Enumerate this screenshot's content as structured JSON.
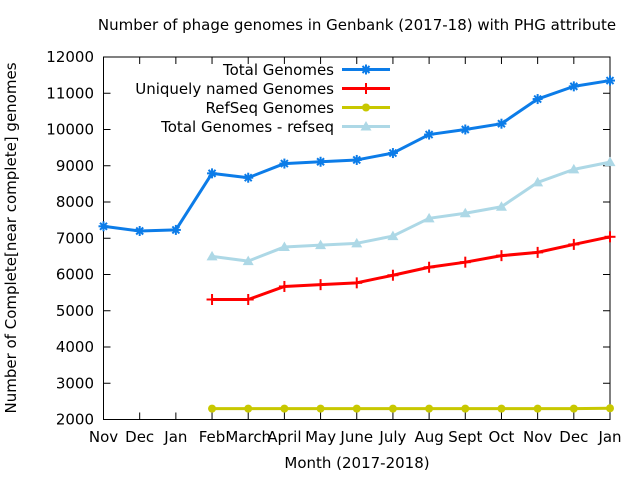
{
  "window": {
    "background": "#ffffff",
    "frame_color": "#000000"
  },
  "chart_data": {
    "type": "line",
    "title": "Number of phage genomes in Genbank (2017-18) with PHG attribute",
    "xlabel": "Month (2017-2018)",
    "ylabel": "Number of Complete[near complete] genomes",
    "ylim": [
      2000,
      12000
    ],
    "ytick_step": 1000,
    "grid": false,
    "legend_position": "top-center-inside",
    "categories": [
      "Nov",
      "Dec",
      "Jan",
      "Feb",
      "March",
      "April",
      "May",
      "June",
      "July",
      "Aug",
      "Sept",
      "Oct",
      "Nov",
      "Dec",
      "Jan"
    ],
    "series": [
      {
        "name": "Total Genomes",
        "color": "#0c7ce8",
        "marker": "asterisk",
        "values": [
          7330,
          7200,
          7230,
          8790,
          8670,
          9060,
          9110,
          9160,
          9350,
          9860,
          10000,
          10160,
          10840,
          11190,
          11350
        ]
      },
      {
        "name": "Uniquely named Genomes",
        "color": "#ff0000",
        "marker": "plus",
        "values": [
          null,
          null,
          null,
          5310,
          5310,
          5670,
          5720,
          5770,
          5980,
          6200,
          6340,
          6520,
          6610,
          6830,
          7040
        ]
      },
      {
        "name": "RefSeq Genomes",
        "color": "#c8c800",
        "marker": "circle",
        "values": [
          null,
          null,
          null,
          2300,
          2300,
          2300,
          2300,
          2300,
          2300,
          2300,
          2300,
          2300,
          2300,
          2300,
          2310
        ]
      },
      {
        "name": "Total Genomes - refseq",
        "color": "#add8e6",
        "marker": "triangle",
        "values": [
          null,
          null,
          null,
          6500,
          6370,
          6760,
          6810,
          6860,
          7060,
          7550,
          7690,
          7870,
          8540,
          8900,
          9100
        ]
      }
    ]
  }
}
